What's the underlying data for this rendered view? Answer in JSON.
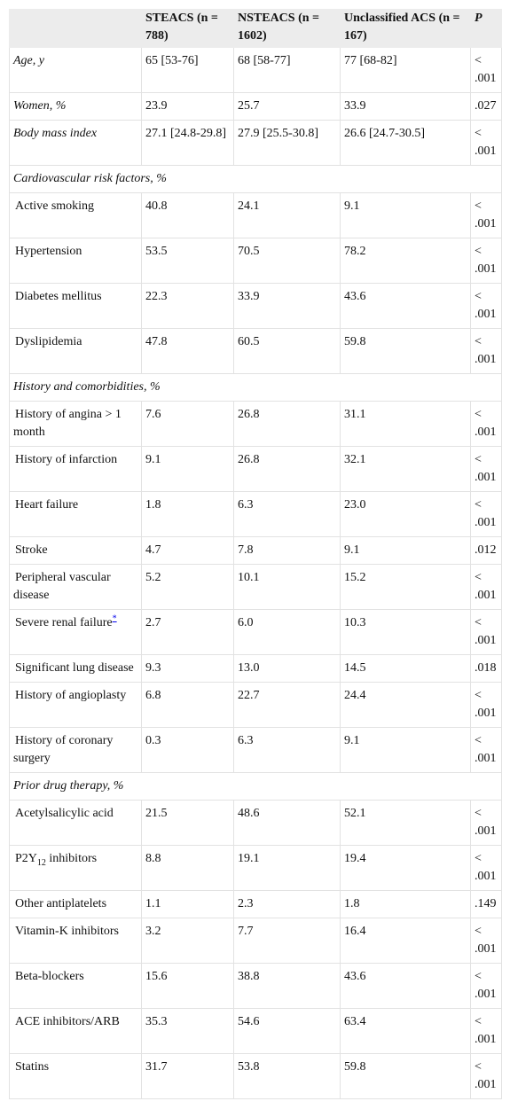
{
  "table": {
    "header": [
      "STEACS (n = 788)",
      "NSTEACS (n = 1602)",
      "Unclassified ACS (n = 167)",
      "P"
    ],
    "rows": [
      [
        "Age, y",
        "65 [53-76]",
        "68 [58-77]",
        "77 [68-82]",
        "< .001"
      ],
      [
        "Women, %",
        "23.9",
        "25.7",
        "33.9",
        ".027"
      ],
      [
        "Body mass index",
        "27.1 [24.8-29.8]",
        "27.9 [25.5-30.8]",
        "26.6 [24.7-30.5]",
        "< .001"
      ],
      [
        "Cardiovascular risk factors, %"
      ],
      [
        "Active smoking",
        "40.8",
        "24.1",
        "9.1",
        "< .001"
      ],
      [
        "Hypertension",
        "53.5",
        "70.5",
        "78.2",
        "< .001"
      ],
      [
        "Diabetes mellitus",
        "22.3",
        "33.9",
        "43.6",
        "< .001"
      ],
      [
        "Dyslipidemia",
        "47.8",
        "60.5",
        "59.8",
        "< .001"
      ],
      [
        "History and comorbidities, %"
      ],
      [
        "History of angina > 1 month",
        "7.6",
        "26.8",
        "31.1",
        "< .001"
      ],
      [
        "History of infarction",
        "9.1",
        "26.8",
        "32.1",
        "< .001"
      ],
      [
        "Heart failure",
        "1.8",
        "6.3",
        "23.0",
        "< .001"
      ],
      [
        "Stroke",
        "4.7",
        "7.8",
        "9.1",
        ".012"
      ],
      [
        "Peripheral vascular disease",
        "5.2",
        "10.1",
        "15.2",
        "< .001"
      ],
      [
        [
          {
            "text": "Severe renal failure"
          },
          {
            "text": "*",
            "style": "sup-link"
          }
        ],
        "2.7",
        "6.0",
        "10.3",
        "< .001"
      ],
      [
        "Significant lung disease",
        "9.3",
        "13.0",
        "14.5",
        ".018"
      ],
      [
        "History of angioplasty",
        "6.8",
        "22.7",
        "24.4",
        "< .001"
      ],
      [
        "History of coronary surgery",
        "0.3",
        "6.3",
        "9.1",
        "< .001"
      ],
      [
        "Prior drug therapy, %"
      ],
      [
        "Acetylsalicylic acid",
        "21.5",
        "48.6",
        "52.1",
        "< .001"
      ],
      [
        [
          {
            "text": "P2Y"
          },
          {
            "text": "12",
            "style": "sub"
          },
          {
            "text": " inhibitors"
          }
        ],
        "8.8",
        "19.1",
        "19.4",
        "< .001"
      ],
      [
        "Other antiplatelets",
        "1.1",
        "2.3",
        "1.8",
        ".149"
      ],
      [
        "Vitamin-K inhibitors",
        "3.2",
        "7.7",
        "16.4",
        "< .001"
      ],
      [
        "Beta-blockers",
        "15.6",
        "38.8",
        "43.6",
        "< .001"
      ],
      [
        "ACE inhibitors/ARB",
        "35.3",
        "54.6",
        "63.4",
        "< .001"
      ],
      [
        "Statins",
        "31.7",
        "53.8",
        "59.8",
        "< .001"
      ]
    ]
  }
}
